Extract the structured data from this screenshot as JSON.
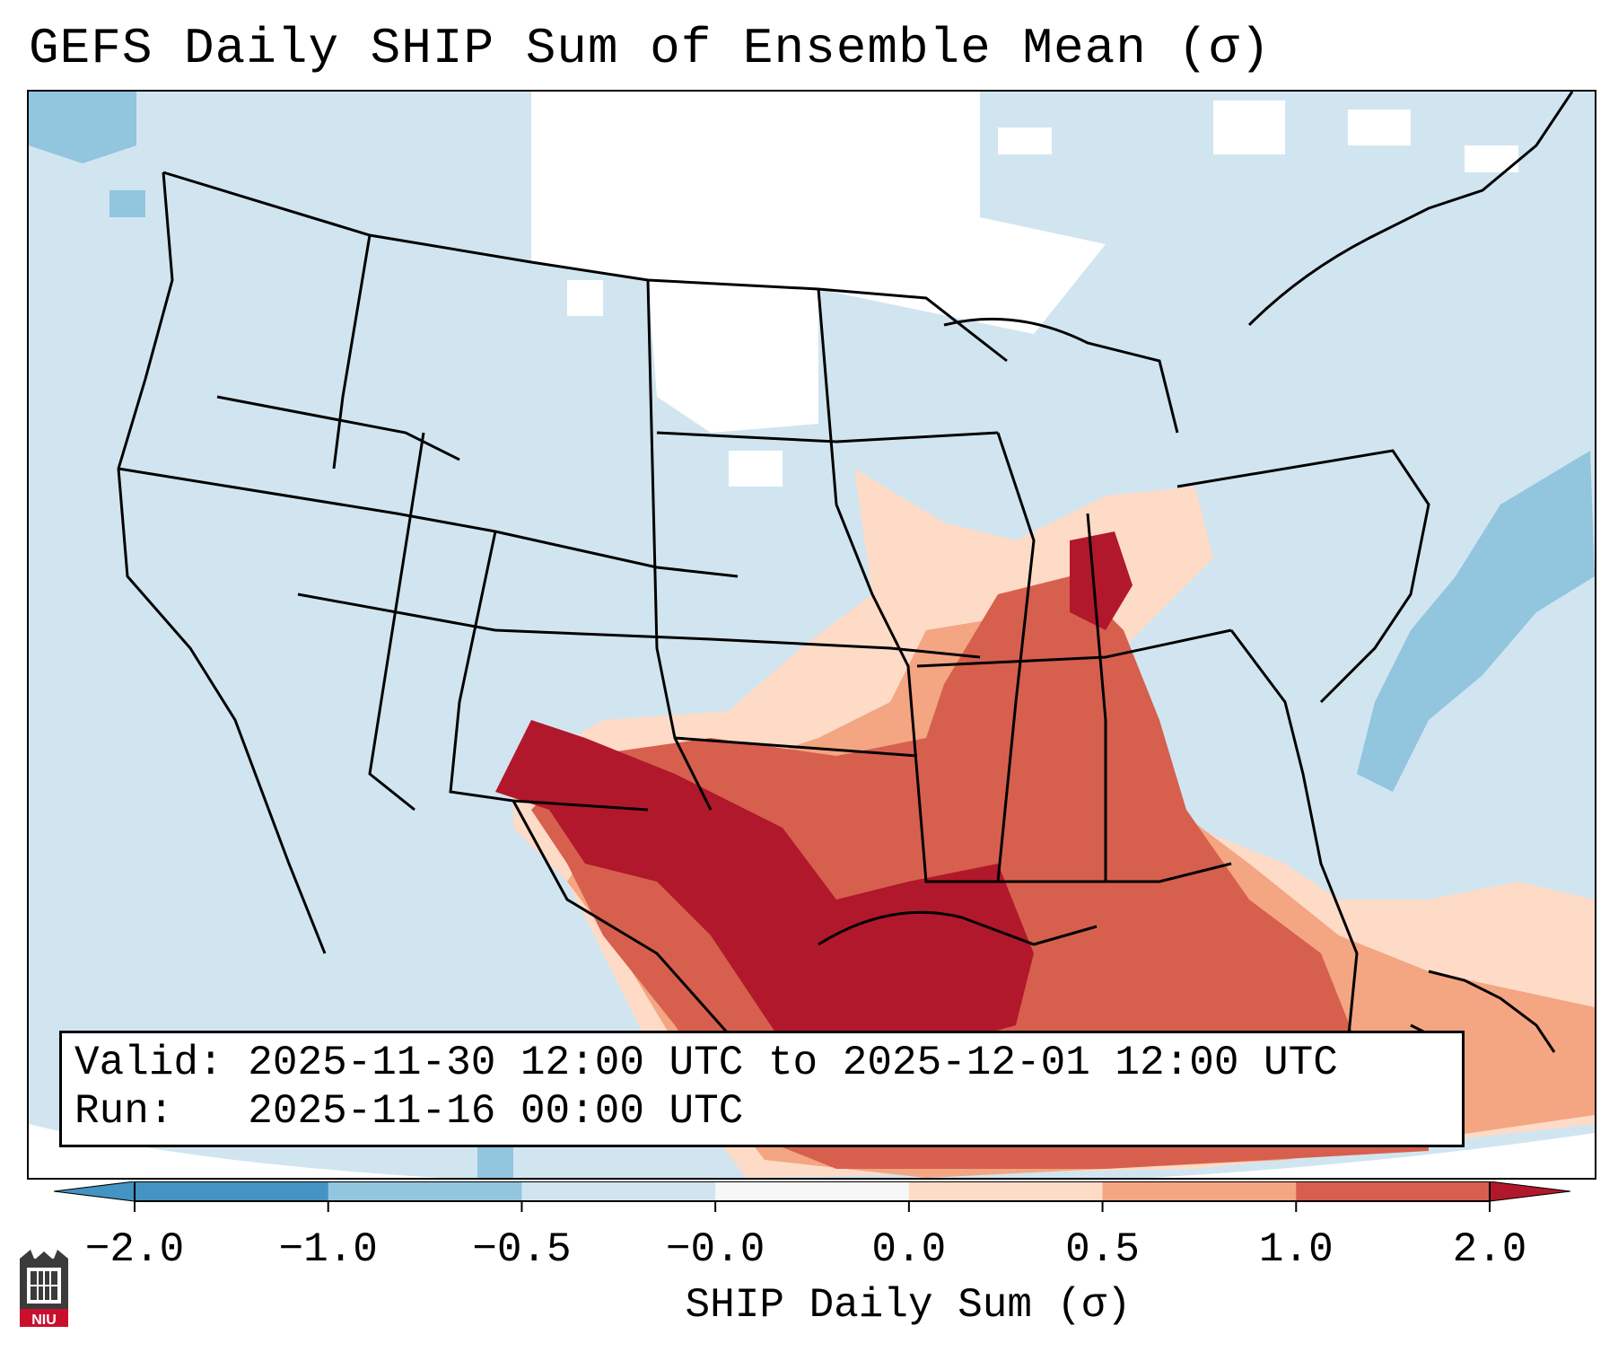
{
  "title": "GEFS Daily SHIP Sum of Ensemble Mean (σ)",
  "info": {
    "valid_label": "Valid:",
    "valid_value": "2025-11-30 12:00 UTC to 2025-12-01 12:00 UTC",
    "run_label": "Run:",
    "run_value": "2025-11-16 00:00 UTC"
  },
  "colorbar": {
    "label": "SHIP Daily Sum (σ)",
    "ticks": [
      "−2.0",
      "−1.0",
      "−0.5",
      "−0.0",
      "0.0",
      "0.5",
      "1.0",
      "2.0"
    ],
    "colors": [
      "#4393c3",
      "#92c5de",
      "#d1e5f0",
      "#f7f7f7",
      "#fddbc7",
      "#f4a582",
      "#d6604d",
      "#b2182b"
    ],
    "extend": "both"
  },
  "logo": {
    "text": "NIU"
  },
  "map": {
    "projection": "Lambert conformal, North America",
    "background_category": "−0.5 to −0.0",
    "features": [
      "state boundaries",
      "country borders",
      "coastlines"
    ]
  }
}
